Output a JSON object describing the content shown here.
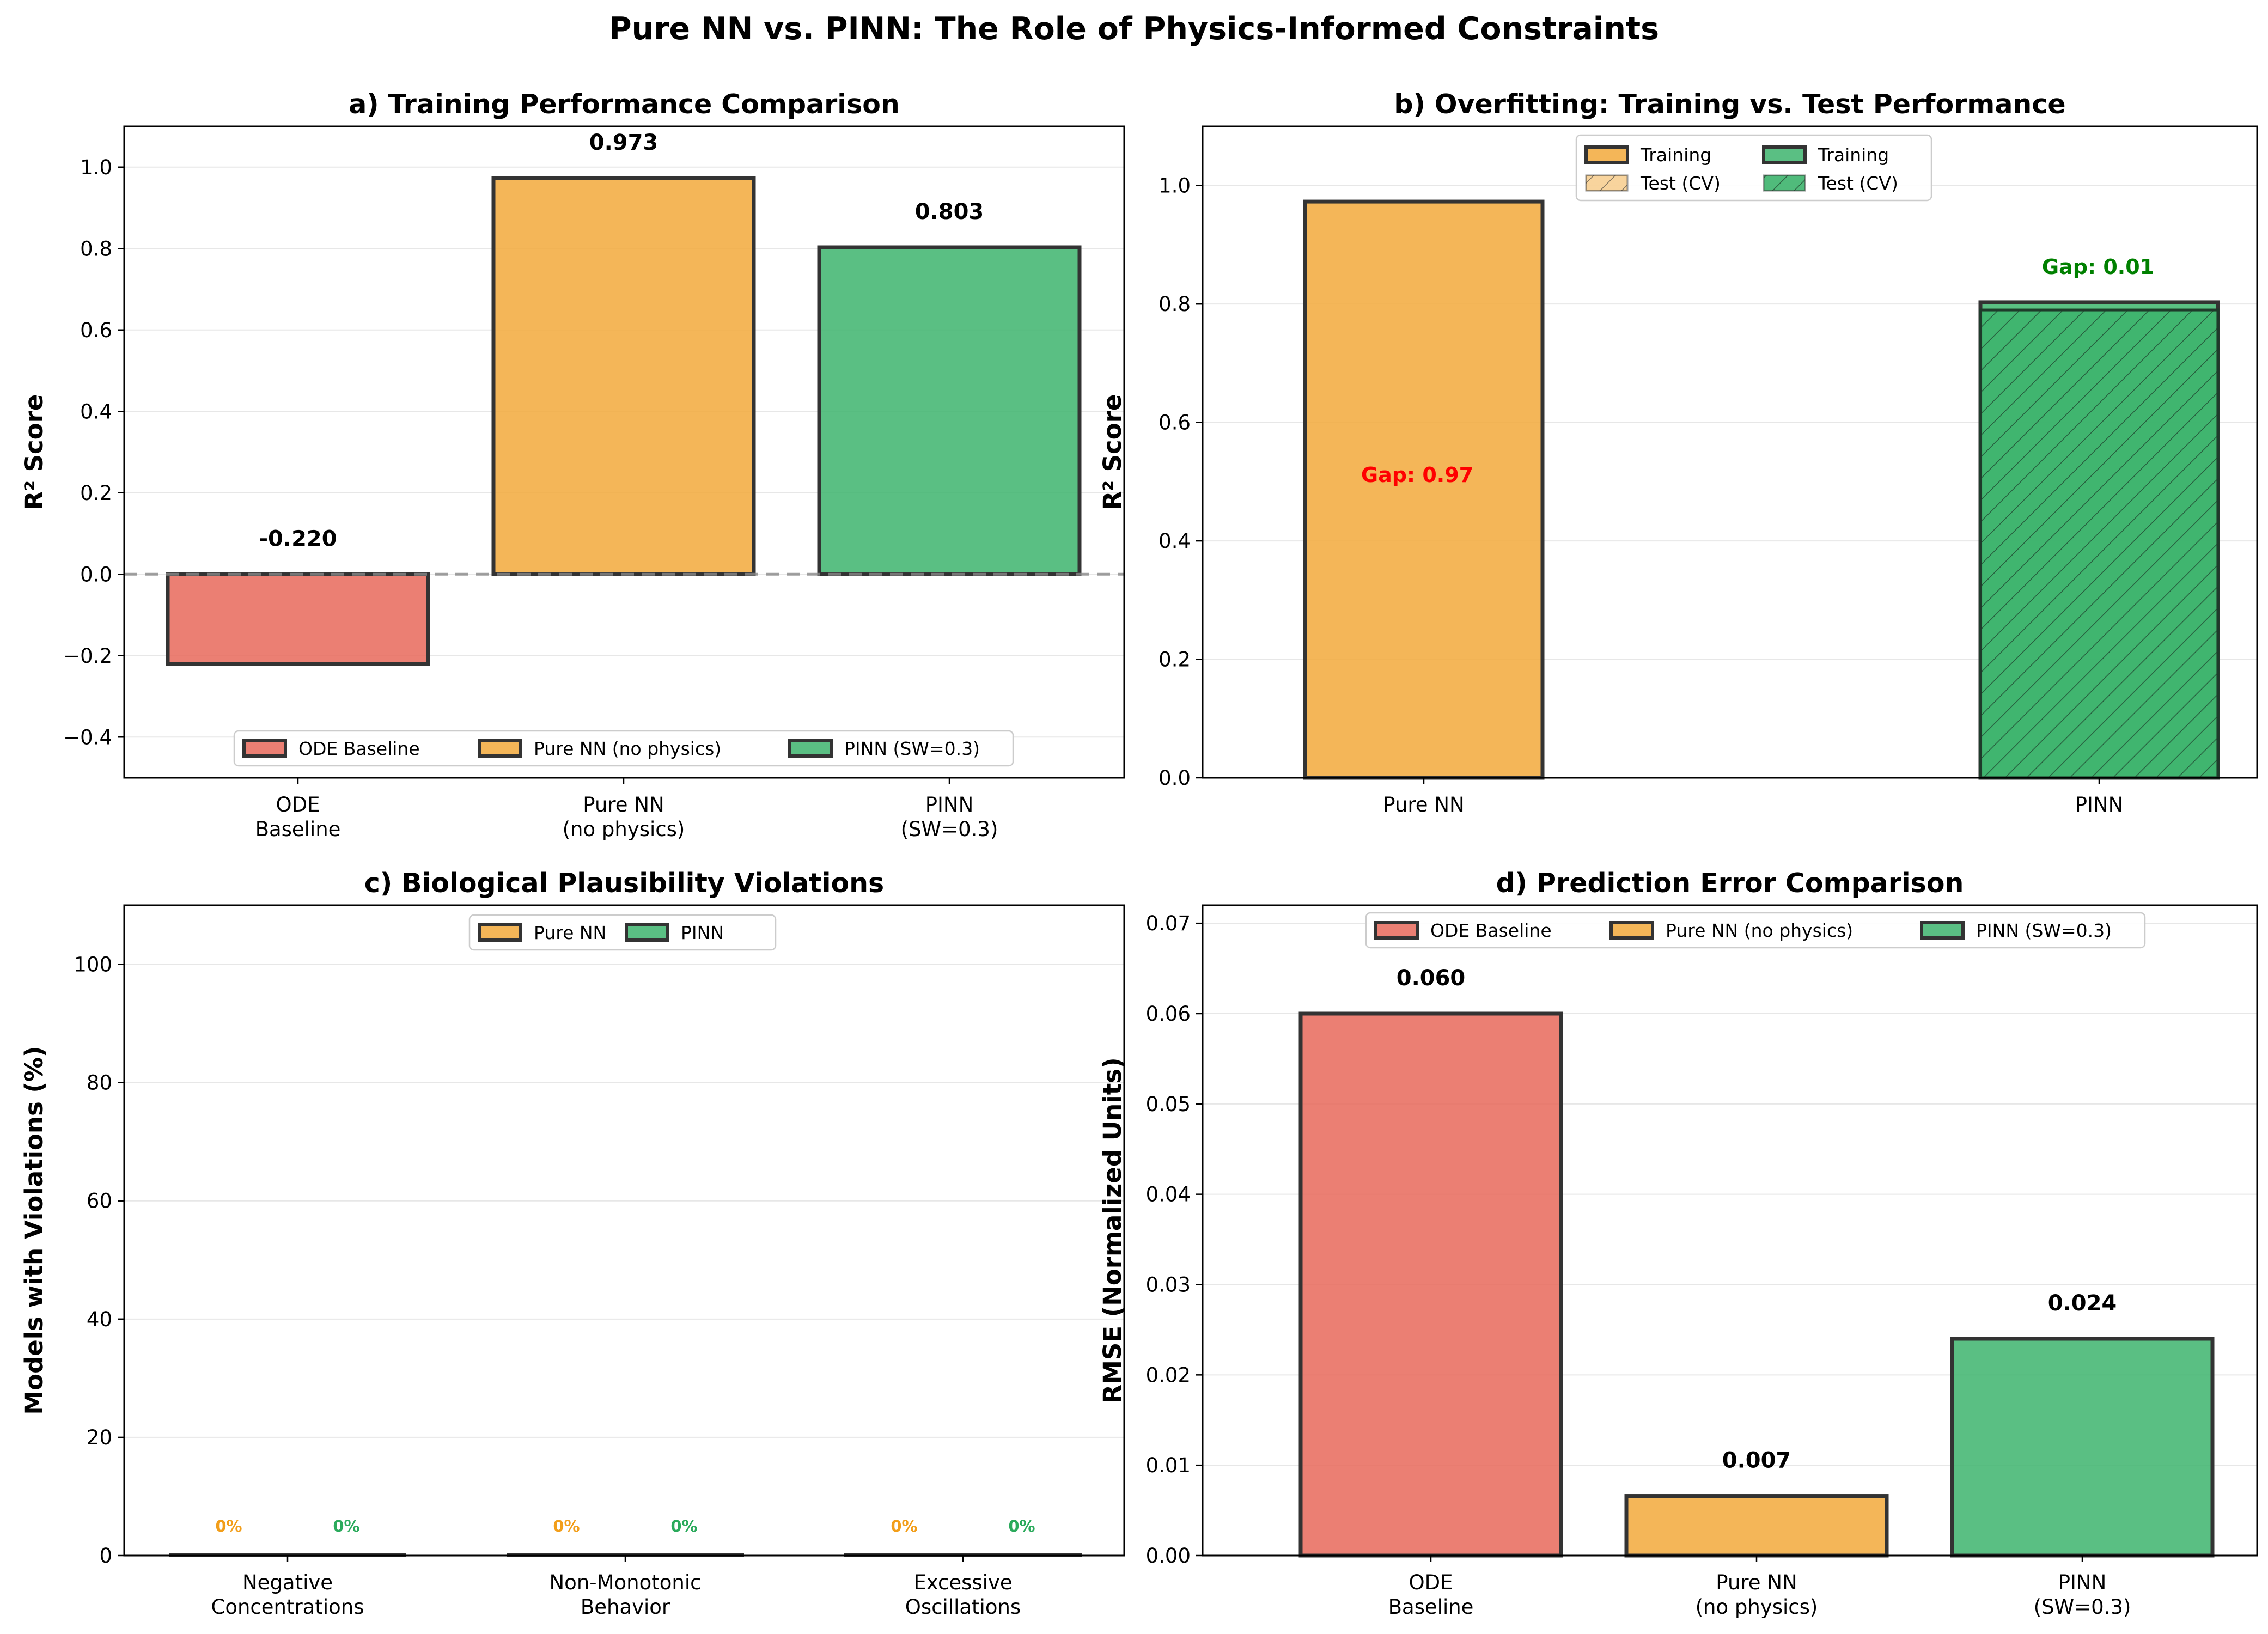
{
  "figure_title": "Pure NN vs. PINN: The Role of Physics-Informed Constraints",
  "colors": {
    "ode": "#E8695A",
    "nn": "#F2A93B",
    "pinn": "#3DB46D",
    "edge": "#333333",
    "gap_bad": "#FF0000",
    "gap_good": "#008000"
  },
  "chart_data": [
    {
      "panel": "a",
      "type": "bar",
      "title": "a) Training Performance Comparison",
      "xlabel": "",
      "ylabel": "R² Score",
      "categories": [
        "ODE\nBaseline",
        "Pure NN\n(no physics)",
        "PINN\n(SW=0.3)"
      ],
      "values": [
        -0.22,
        0.973,
        0.803
      ],
      "value_labels": [
        "-0.220",
        "0.973",
        "0.803"
      ],
      "ylim": [
        -0.5,
        1.1
      ],
      "yticks": [
        -0.4,
        -0.2,
        0.0,
        0.2,
        0.4,
        0.6,
        0.8,
        1.0
      ],
      "ytick_labels": [
        "−0.4",
        "−0.2",
        "0.0",
        "0.2",
        "0.4",
        "0.6",
        "0.8",
        "1.0"
      ],
      "reference_line": 0,
      "legend": [
        "ODE Baseline",
        "Pure NN (no physics)",
        "PINN (SW=0.3)"
      ],
      "legend_position": "lower center",
      "grid": true
    },
    {
      "panel": "b",
      "type": "bar",
      "title": "b) Overfitting: Training vs. Test Performance",
      "xlabel": "",
      "ylabel": "R² Score",
      "categories": [
        "Pure NN",
        "PINN"
      ],
      "series": [
        {
          "name": "Training",
          "values": [
            0.973,
            0.803
          ]
        },
        {
          "name": "Test (CV)",
          "values": [
            0.0,
            0.79
          ]
        }
      ],
      "gap_labels": [
        "Gap: 0.97",
        "Gap: 0.01"
      ],
      "ylim": [
        0,
        1.1
      ],
      "yticks": [
        0.0,
        0.2,
        0.4,
        0.6,
        0.8,
        1.0
      ],
      "ytick_labels": [
        "0.0",
        "0.2",
        "0.4",
        "0.6",
        "0.8",
        "1.0"
      ],
      "legend": [
        "Training",
        "Test (CV)",
        "Training",
        "Test (CV)"
      ],
      "legend_position": "upper center",
      "grid": true
    },
    {
      "panel": "c",
      "type": "bar",
      "title": "c) Biological Plausibility Violations",
      "xlabel": "",
      "ylabel": "Models with Violations (%)",
      "categories": [
        "Negative\nConcentrations",
        "Non-Monotonic\nBehavior",
        "Excessive\nOscillations"
      ],
      "series": [
        {
          "name": "Pure NN",
          "values": [
            0,
            0,
            0
          ]
        },
        {
          "name": "PINN",
          "values": [
            0,
            0,
            0
          ]
        }
      ],
      "value_label": "0%",
      "ylim": [
        0,
        110
      ],
      "yticks": [
        0,
        20,
        40,
        60,
        80,
        100
      ],
      "ytick_labels": [
        "0",
        "20",
        "40",
        "60",
        "80",
        "100"
      ],
      "legend": [
        "Pure NN",
        "PINN"
      ],
      "legend_position": "upper center",
      "grid": true
    },
    {
      "panel": "d",
      "type": "bar",
      "title": "d) Prediction Error Comparison",
      "xlabel": "",
      "ylabel": "RMSE (Normalized Units)",
      "categories": [
        "ODE\nBaseline",
        "Pure NN\n(no physics)",
        "PINN\n(SW=0.3)"
      ],
      "values": [
        0.06,
        0.0066,
        0.024
      ],
      "value_labels": [
        "0.060",
        "0.007",
        "0.024"
      ],
      "ylim": [
        0,
        0.072
      ],
      "yticks": [
        0.0,
        0.01,
        0.02,
        0.03,
        0.04,
        0.05,
        0.06,
        0.07
      ],
      "ytick_labels": [
        "0.00",
        "0.01",
        "0.02",
        "0.03",
        "0.04",
        "0.05",
        "0.06",
        "0.07"
      ],
      "legend": [
        "ODE Baseline",
        "Pure NN (no physics)",
        "PINN (SW=0.3)"
      ],
      "legend_position": "upper center",
      "grid": true
    }
  ]
}
